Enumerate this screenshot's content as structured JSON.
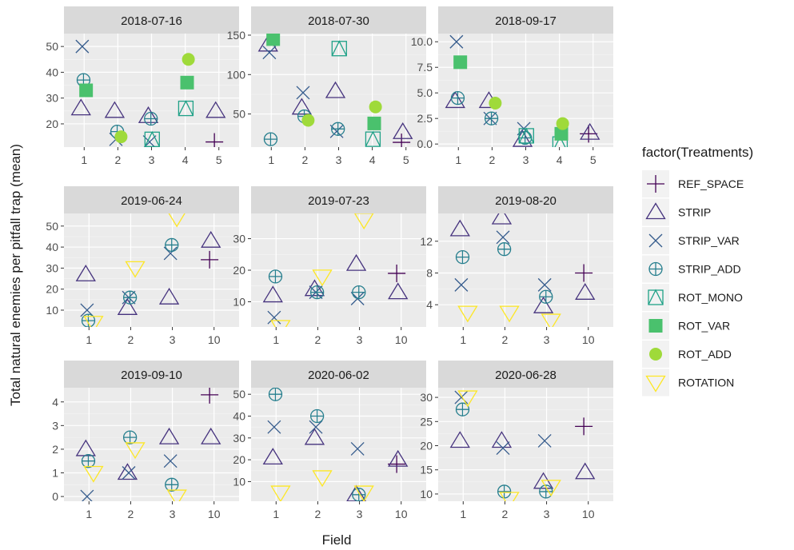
{
  "chart_data": {
    "type": "scatter",
    "xlabel": "Field",
    "ylabel": "Total natural enemies per pitfall trap (mean)",
    "legend": {
      "title": "factor(Treatments)",
      "placement": "right",
      "items": [
        {
          "name": "REF_SPACE",
          "shape": "plus",
          "color": "#440154"
        },
        {
          "name": "STRIP",
          "shape": "triangle-open",
          "color": "#46337E"
        },
        {
          "name": "STRIP_VAR",
          "shape": "cross",
          "color": "#365C8D"
        },
        {
          "name": "STRIP_ADD",
          "shape": "circle-plus",
          "color": "#277F8E"
        },
        {
          "name": "ROT_MONO",
          "shape": "square-triangle",
          "color": "#1FA187"
        },
        {
          "name": "ROT_VAR",
          "shape": "square-filled",
          "color": "#4AC16D"
        },
        {
          "name": "ROT_ADD",
          "shape": "circle-filled",
          "color": "#9FDA3A"
        },
        {
          "name": "ROTATION",
          "shape": "triangle-down",
          "color": "#FDE725"
        }
      ]
    },
    "panels": [
      {
        "title": "2018-07-16",
        "categories": [
          "1",
          "2",
          "3",
          "4",
          "5"
        ],
        "ylim": [
          11,
          55
        ],
        "yticks": [
          20,
          30,
          40,
          50
        ],
        "points": [
          {
            "x": "1",
            "y": 26,
            "t": "STRIP"
          },
          {
            "x": "1",
            "y": 50,
            "t": "STRIP_VAR"
          },
          {
            "x": "1",
            "y": 37,
            "t": "STRIP_ADD"
          },
          {
            "x": "1",
            "y": 33,
            "t": "ROT_VAR"
          },
          {
            "x": "2",
            "y": 25,
            "t": "STRIP"
          },
          {
            "x": "2",
            "y": 14,
            "t": "STRIP_VAR"
          },
          {
            "x": "2",
            "y": 17,
            "t": "STRIP_ADD"
          },
          {
            "x": "2",
            "y": 15,
            "t": "ROT_ADD"
          },
          {
            "x": "3",
            "y": 23,
            "t": "STRIP"
          },
          {
            "x": "3",
            "y": 13,
            "t": "STRIP_VAR"
          },
          {
            "x": "3",
            "y": 22,
            "t": "STRIP_ADD"
          },
          {
            "x": "3",
            "y": 14,
            "t": "ROT_MONO"
          },
          {
            "x": "4",
            "y": 26,
            "t": "ROT_MONO"
          },
          {
            "x": "4",
            "y": 36,
            "t": "ROT_VAR"
          },
          {
            "x": "4",
            "y": 45,
            "t": "ROT_ADD"
          },
          {
            "x": "5",
            "y": 13,
            "t": "REF_SPACE"
          },
          {
            "x": "5",
            "y": 25,
            "t": "STRIP"
          }
        ]
      },
      {
        "title": "2018-07-30",
        "categories": [
          "1",
          "2",
          "3",
          "4",
          "5"
        ],
        "ylim": [
          8,
          152
        ],
        "yticks": [
          50,
          100,
          150
        ],
        "points": [
          {
            "x": "1",
            "y": 138,
            "t": "STRIP"
          },
          {
            "x": "1",
            "y": 128,
            "t": "STRIP_VAR"
          },
          {
            "x": "1",
            "y": 18,
            "t": "STRIP_ADD"
          },
          {
            "x": "1",
            "y": 145,
            "t": "ROT_VAR"
          },
          {
            "x": "2",
            "y": 58,
            "t": "STRIP"
          },
          {
            "x": "2",
            "y": 77,
            "t": "STRIP_VAR"
          },
          {
            "x": "2",
            "y": 47,
            "t": "STRIP_ADD"
          },
          {
            "x": "2",
            "y": 42,
            "t": "ROT_ADD"
          },
          {
            "x": "3",
            "y": 79,
            "t": "STRIP"
          },
          {
            "x": "3",
            "y": 28,
            "t": "STRIP_VAR"
          },
          {
            "x": "3",
            "y": 31,
            "t": "STRIP_ADD"
          },
          {
            "x": "3",
            "y": 133,
            "t": "ROT_MONO"
          },
          {
            "x": "4",
            "y": 18,
            "t": "ROT_MONO"
          },
          {
            "x": "4",
            "y": 38,
            "t": "ROT_VAR"
          },
          {
            "x": "4",
            "y": 59,
            "t": "ROT_ADD"
          },
          {
            "x": "5",
            "y": 14,
            "t": "REF_SPACE"
          },
          {
            "x": "5",
            "y": 27,
            "t": "STRIP"
          }
        ]
      },
      {
        "title": "2018-09-17",
        "categories": [
          "1",
          "2",
          "3",
          "4",
          "5"
        ],
        "ylim": [
          -0.3,
          10.8
        ],
        "yticks": [
          0.0,
          2.5,
          5.0,
          7.5,
          10.0
        ],
        "tick_decimals": 1,
        "points": [
          {
            "x": "1",
            "y": 4.2,
            "t": "STRIP"
          },
          {
            "x": "1",
            "y": 10.0,
            "t": "STRIP_VAR"
          },
          {
            "x": "1",
            "y": 4.5,
            "t": "STRIP_ADD"
          },
          {
            "x": "1",
            "y": 8.0,
            "t": "ROT_VAR"
          },
          {
            "x": "2",
            "y": 4.2,
            "t": "STRIP"
          },
          {
            "x": "2",
            "y": 2.5,
            "t": "STRIP_VAR"
          },
          {
            "x": "2",
            "y": 2.5,
            "t": "STRIP_ADD"
          },
          {
            "x": "2",
            "y": 4.0,
            "t": "ROT_ADD"
          },
          {
            "x": "3",
            "y": 0.4,
            "t": "STRIP"
          },
          {
            "x": "3",
            "y": 1.5,
            "t": "STRIP_VAR"
          },
          {
            "x": "3",
            "y": 0.6,
            "t": "STRIP_ADD"
          },
          {
            "x": "3",
            "y": 0.8,
            "t": "ROT_MONO"
          },
          {
            "x": "4",
            "y": 0.0,
            "t": "ROT_MONO"
          },
          {
            "x": "4",
            "y": 1.0,
            "t": "ROT_VAR"
          },
          {
            "x": "4",
            "y": 2.0,
            "t": "ROT_ADD"
          },
          {
            "x": "5",
            "y": 1.0,
            "t": "REF_SPACE"
          },
          {
            "x": "5",
            "y": 1.1,
            "t": "STRIP"
          }
        ]
      },
      {
        "title": "2019-06-24",
        "categories": [
          "1",
          "2",
          "3",
          "10"
        ],
        "ylim": [
          2,
          56
        ],
        "yticks": [
          10,
          20,
          30,
          40,
          50
        ],
        "points": [
          {
            "x": "1",
            "y": 27,
            "t": "STRIP"
          },
          {
            "x": "1",
            "y": 10,
            "t": "STRIP_VAR"
          },
          {
            "x": "1",
            "y": 5,
            "t": "STRIP_ADD"
          },
          {
            "x": "1",
            "y": 4,
            "t": "ROTATION"
          },
          {
            "x": "2",
            "y": 11,
            "t": "STRIP"
          },
          {
            "x": "2",
            "y": 16,
            "t": "STRIP_VAR"
          },
          {
            "x": "2",
            "y": 16,
            "t": "STRIP_ADD"
          },
          {
            "x": "2",
            "y": 30,
            "t": "ROTATION"
          },
          {
            "x": "3",
            "y": 16,
            "t": "STRIP"
          },
          {
            "x": "3",
            "y": 37,
            "t": "STRIP_VAR"
          },
          {
            "x": "3",
            "y": 41,
            "t": "STRIP_ADD"
          },
          {
            "x": "3",
            "y": 54,
            "t": "ROTATION"
          },
          {
            "x": "10",
            "y": 34,
            "t": "REF_SPACE"
          },
          {
            "x": "10",
            "y": 43,
            "t": "STRIP"
          }
        ]
      },
      {
        "title": "2019-07-23",
        "categories": [
          "1",
          "2",
          "3",
          "10"
        ],
        "ylim": [
          2,
          38
        ],
        "yticks": [
          10,
          20,
          30
        ],
        "points": [
          {
            "x": "1",
            "y": 12,
            "t": "STRIP"
          },
          {
            "x": "1",
            "y": 5,
            "t": "STRIP_VAR"
          },
          {
            "x": "1",
            "y": 18,
            "t": "STRIP_ADD"
          },
          {
            "x": "1",
            "y": 2,
            "t": "ROTATION"
          },
          {
            "x": "2",
            "y": 14,
            "t": "STRIP"
          },
          {
            "x": "2",
            "y": 13,
            "t": "STRIP_VAR"
          },
          {
            "x": "2",
            "y": 13,
            "t": "STRIP_ADD"
          },
          {
            "x": "2",
            "y": 18,
            "t": "ROTATION"
          },
          {
            "x": "3",
            "y": 22,
            "t": "STRIP"
          },
          {
            "x": "3",
            "y": 11,
            "t": "STRIP_VAR"
          },
          {
            "x": "3",
            "y": 13,
            "t": "STRIP_ADD"
          },
          {
            "x": "3",
            "y": 36,
            "t": "ROTATION"
          },
          {
            "x": "10",
            "y": 19,
            "t": "REF_SPACE"
          },
          {
            "x": "10",
            "y": 13,
            "t": "STRIP"
          }
        ]
      },
      {
        "title": "2019-08-20",
        "categories": [
          "1",
          "2",
          "3",
          "10"
        ],
        "ylim": [
          1.2,
          15.5
        ],
        "yticks": [
          4,
          8,
          12
        ],
        "points": [
          {
            "x": "1",
            "y": 13.5,
            "t": "STRIP"
          },
          {
            "x": "1",
            "y": 6.5,
            "t": "STRIP_VAR"
          },
          {
            "x": "1",
            "y": 10,
            "t": "STRIP_ADD"
          },
          {
            "x": "1",
            "y": 3,
            "t": "ROTATION"
          },
          {
            "x": "2",
            "y": 15,
            "t": "STRIP"
          },
          {
            "x": "2",
            "y": 12.5,
            "t": "STRIP_VAR"
          },
          {
            "x": "2",
            "y": 11,
            "t": "STRIP_ADD"
          },
          {
            "x": "2",
            "y": 3,
            "t": "ROTATION"
          },
          {
            "x": "3",
            "y": 3.8,
            "t": "STRIP"
          },
          {
            "x": "3",
            "y": 6.5,
            "t": "STRIP_VAR"
          },
          {
            "x": "3",
            "y": 5,
            "t": "STRIP_ADD"
          },
          {
            "x": "3",
            "y": 2,
            "t": "ROTATION"
          },
          {
            "x": "10",
            "y": 8,
            "t": "REF_SPACE"
          },
          {
            "x": "10",
            "y": 5.5,
            "t": "STRIP"
          }
        ]
      },
      {
        "title": "2019-09-10",
        "categories": [
          "1",
          "2",
          "3",
          "10"
        ],
        "ylim": [
          -0.2,
          4.6
        ],
        "yticks": [
          0,
          1,
          2,
          3,
          4
        ],
        "points": [
          {
            "x": "1",
            "y": 2.0,
            "t": "STRIP"
          },
          {
            "x": "1",
            "y": 0.0,
            "t": "STRIP_VAR"
          },
          {
            "x": "1",
            "y": 1.5,
            "t": "STRIP_ADD"
          },
          {
            "x": "1",
            "y": 1.0,
            "t": "ROTATION"
          },
          {
            "x": "2",
            "y": 1.0,
            "t": "STRIP"
          },
          {
            "x": "2",
            "y": 1.0,
            "t": "STRIP_VAR"
          },
          {
            "x": "2",
            "y": 2.5,
            "t": "STRIP_ADD"
          },
          {
            "x": "2",
            "y": 2.0,
            "t": "ROTATION"
          },
          {
            "x": "3",
            "y": 2.5,
            "t": "STRIP"
          },
          {
            "x": "3",
            "y": 1.5,
            "t": "STRIP_VAR"
          },
          {
            "x": "3",
            "y": 0.5,
            "t": "STRIP_ADD"
          },
          {
            "x": "3",
            "y": 0.0,
            "t": "ROTATION"
          },
          {
            "x": "10",
            "y": 4.3,
            "t": "REF_SPACE"
          },
          {
            "x": "10",
            "y": 2.5,
            "t": "STRIP"
          }
        ]
      },
      {
        "title": "2020-06-02",
        "categories": [
          "1",
          "2",
          "3",
          "10"
        ],
        "ylim": [
          1,
          53
        ],
        "yticks": [
          10,
          20,
          30,
          40,
          50
        ],
        "points": [
          {
            "x": "1",
            "y": 21,
            "t": "STRIP"
          },
          {
            "x": "1",
            "y": 35,
            "t": "STRIP_VAR"
          },
          {
            "x": "1",
            "y": 50,
            "t": "STRIP_ADD"
          },
          {
            "x": "1",
            "y": 5,
            "t": "ROTATION"
          },
          {
            "x": "2",
            "y": 30,
            "t": "STRIP"
          },
          {
            "x": "2",
            "y": 35,
            "t": "STRIP_VAR"
          },
          {
            "x": "2",
            "y": 40,
            "t": "STRIP_ADD"
          },
          {
            "x": "2",
            "y": 12,
            "t": "ROTATION"
          },
          {
            "x": "3",
            "y": 4,
            "t": "STRIP"
          },
          {
            "x": "3",
            "y": 25,
            "t": "STRIP_VAR"
          },
          {
            "x": "3",
            "y": 4,
            "t": "STRIP_ADD"
          },
          {
            "x": "3",
            "y": 5,
            "t": "ROTATION"
          },
          {
            "x": "10",
            "y": 18,
            "t": "REF_SPACE"
          },
          {
            "x": "10",
            "y": 20,
            "t": "STRIP"
          }
        ]
      },
      {
        "title": "2020-06-28",
        "categories": [
          "1",
          "2",
          "3",
          "10"
        ],
        "ylim": [
          8.5,
          32
        ],
        "yticks": [
          10,
          15,
          20,
          25,
          30
        ],
        "points": [
          {
            "x": "1",
            "y": 21,
            "t": "STRIP"
          },
          {
            "x": "1",
            "y": 30,
            "t": "STRIP_VAR"
          },
          {
            "x": "1",
            "y": 27.5,
            "t": "STRIP_ADD"
          },
          {
            "x": "1",
            "y": 30,
            "t": "ROTATION"
          },
          {
            "x": "2",
            "y": 21,
            "t": "STRIP"
          },
          {
            "x": "2",
            "y": 19.5,
            "t": "STRIP_VAR"
          },
          {
            "x": "2",
            "y": 10.5,
            "t": "STRIP_ADD"
          },
          {
            "x": "2",
            "y": 9,
            "t": "ROTATION"
          },
          {
            "x": "3",
            "y": 12.5,
            "t": "STRIP"
          },
          {
            "x": "3",
            "y": 21,
            "t": "STRIP_VAR"
          },
          {
            "x": "3",
            "y": 10.5,
            "t": "STRIP_ADD"
          },
          {
            "x": "3",
            "y": 11.5,
            "t": "ROTATION"
          },
          {
            "x": "10",
            "y": 24,
            "t": "REF_SPACE"
          },
          {
            "x": "10",
            "y": 14.5,
            "t": "STRIP"
          }
        ]
      }
    ]
  }
}
